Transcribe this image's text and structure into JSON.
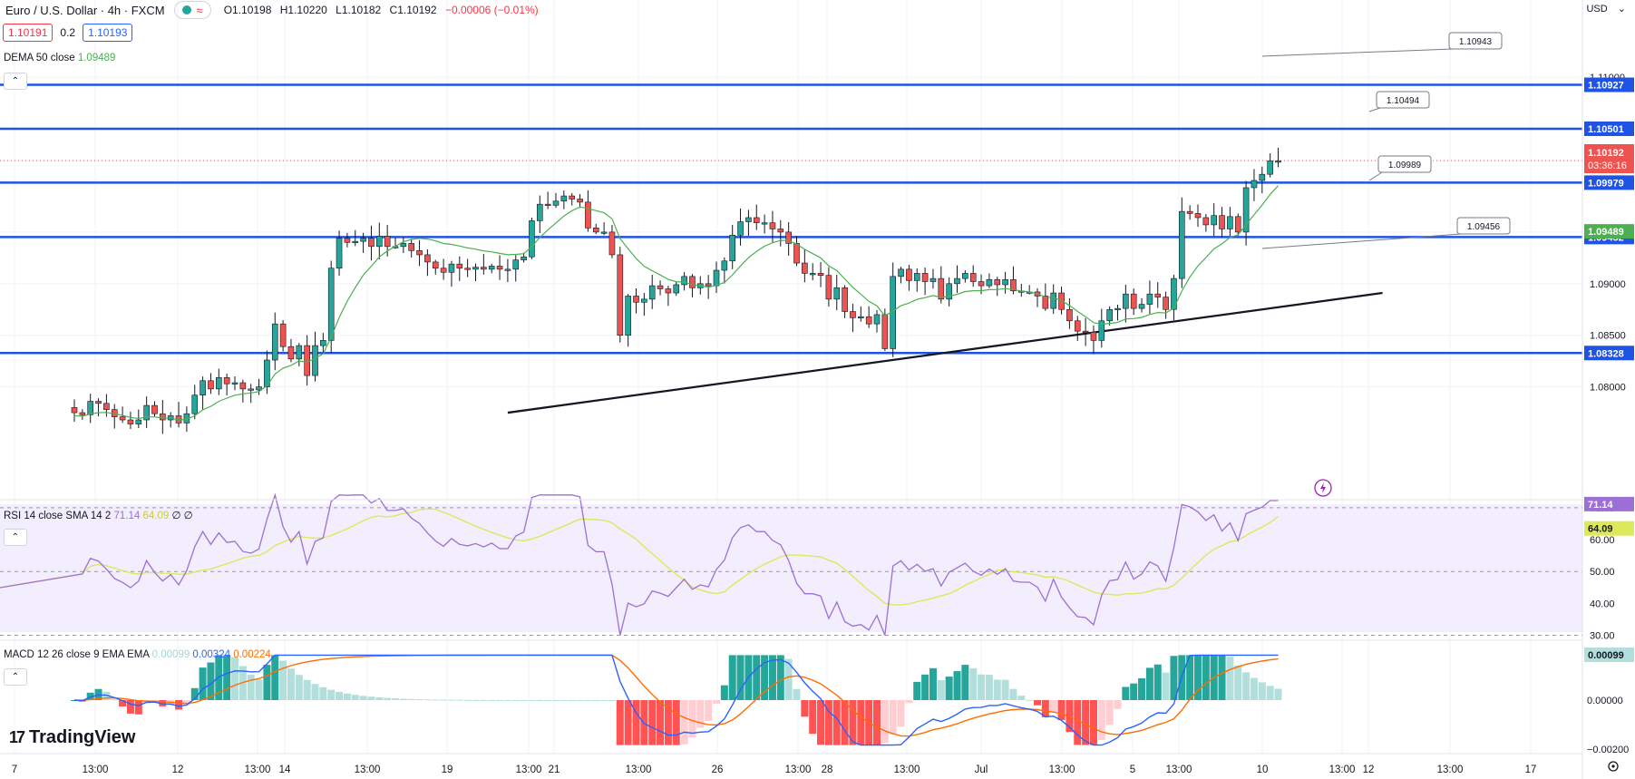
{
  "header": {
    "symbol": "Euro / U.S. Dollar · 4h · FXCM",
    "open": "O1.10198",
    "high": "H1.10220",
    "low": "L1.10182",
    "close": "C1.10192",
    "change": "−0.00006 (−0.01%)",
    "bid": "1.10191",
    "spread": "0.2",
    "ask": "1.10193",
    "currency": "USD"
  },
  "indicators": {
    "dema_label": "DEMA 50 close",
    "dema_value": "1.09489",
    "rsi_label": "RSI 14 close SMA 14 2",
    "rsi_value": "71.14",
    "rsi_sma_value": "64.09",
    "rsi_extra": "∅ ∅",
    "macd_label": "MACD 12 26 close 9 EMA EMA",
    "macd_hist_value": "0.00099",
    "macd_value": "0.00324",
    "signal_value": "0.00224"
  },
  "logo_text": "TradingView",
  "colors": {
    "up": "#26a69a",
    "down": "#ef5350",
    "level": "#1e53e5",
    "dema": "#4caf50",
    "rsi": "#9c6fd6",
    "rsi_sma": "#dde85a",
    "macd": "#2962ff",
    "signal": "#ff6d00",
    "hist_up_strong": "#26a69a",
    "hist_up_weak": "#b2dfdb",
    "hist_down_strong": "#ff5252",
    "hist_down_weak": "#ffcdd2"
  },
  "chart_data": {
    "type": "candlestick",
    "y_range": [
      1.0768,
      1.1104
    ],
    "x_labels": [
      "7",
      "13:00",
      "12",
      "13:00",
      "14",
      "13:00",
      "19",
      "13:00",
      "21",
      "13:00",
      "26",
      "13:00",
      "28",
      "13:00",
      "Jul",
      "13:00",
      "5",
      "13:00",
      "10",
      "13:00",
      "12",
      "13:00",
      "17"
    ],
    "y_ticks": [
      "1.11000",
      "1.10500",
      "1.10000",
      "1.09500",
      "1.09000",
      "1.08500",
      "1.08000"
    ],
    "current_price": "1.10192",
    "countdown": "03:36:16",
    "levels": [
      {
        "value": 1.10927,
        "label": "1.10927"
      },
      {
        "value": 1.10501,
        "label": "1.10501"
      },
      {
        "value": 1.09979,
        "label": "1.09979"
      },
      {
        "value": 1.09452,
        "label": "1.09452"
      },
      {
        "value": 1.08328,
        "label": "1.08328"
      }
    ],
    "dema_axis_label": "1.09489",
    "callouts": [
      "1.10943",
      "1.10494",
      "1.09989",
      "1.09456"
    ],
    "trendline": [
      [
        54,
        1.0775
      ],
      [
        163,
        1.0891
      ]
    ],
    "closes": [
      1.0775,
      1.0773,
      1.0786,
      1.0784,
      1.0778,
      1.0771,
      1.0768,
      1.0764,
      1.0768,
      1.0782,
      1.0774,
      1.0768,
      1.0772,
      1.0765,
      1.0774,
      1.0792,
      1.0806,
      1.0798,
      1.0809,
      1.0803,
      1.0804,
      1.0798,
      1.0797,
      1.08,
      1.0826,
      1.0861,
      1.0839,
      1.0827,
      1.084,
      1.0811,
      1.084,
      1.0845,
      1.0915,
      1.0944,
      1.094,
      1.0941,
      1.0944,
      1.0936,
      1.0946,
      1.0936,
      1.0936,
      1.0939,
      1.0932,
      1.0928,
      1.0921,
      1.0915,
      1.0911,
      1.0919,
      1.0915,
      1.0914,
      1.0916,
      1.0914,
      1.0917,
      1.0914,
      1.0914,
      1.0923,
      1.0926,
      1.0961,
      1.0977,
      1.0976,
      1.098,
      1.0985,
      1.0982,
      1.0979,
      1.0954,
      1.095,
      1.095,
      1.0928,
      1.085,
      1.0888,
      1.0882,
      1.0885,
      1.0898,
      1.0895,
      1.0891,
      1.0899,
      1.0907,
      1.0896,
      1.09,
      1.0898,
      1.0913,
      1.0922,
      1.0947,
      1.096,
      1.0964,
      1.0959,
      1.0959,
      1.0953,
      1.095,
      1.0939,
      1.092,
      1.091,
      1.091,
      1.0908,
      1.0885,
      1.0896,
      1.0873,
      1.0867,
      1.0868,
      1.0861,
      1.087,
      1.0837,
      1.0907,
      1.0914,
      1.0903,
      1.091,
      1.0902,
      1.0905,
      1.0885,
      1.09,
      1.0905,
      1.091,
      1.0902,
      1.0898,
      1.0904,
      1.0899,
      1.0904,
      1.0893,
      1.0892,
      1.0892,
      1.0888,
      1.0876,
      1.0891,
      1.0875,
      1.0864,
      1.0854,
      1.0853,
      1.0845,
      1.0864,
      1.0875,
      1.0876,
      1.089,
      1.0876,
      1.088,
      1.089,
      1.0887,
      1.0875,
      1.0905,
      1.097,
      1.0968,
      1.0964,
      1.0957,
      1.0966,
      1.0953,
      1.0965,
      1.095,
      1.0993,
      1.1,
      1.1006,
      1.1019,
      1.1019
    ]
  },
  "rsi_ticks": [
    "70.00",
    "60.00",
    "50.00",
    "40.00",
    "30.00"
  ],
  "macd_ticks": [
    "0.00000",
    "−0.00200"
  ]
}
